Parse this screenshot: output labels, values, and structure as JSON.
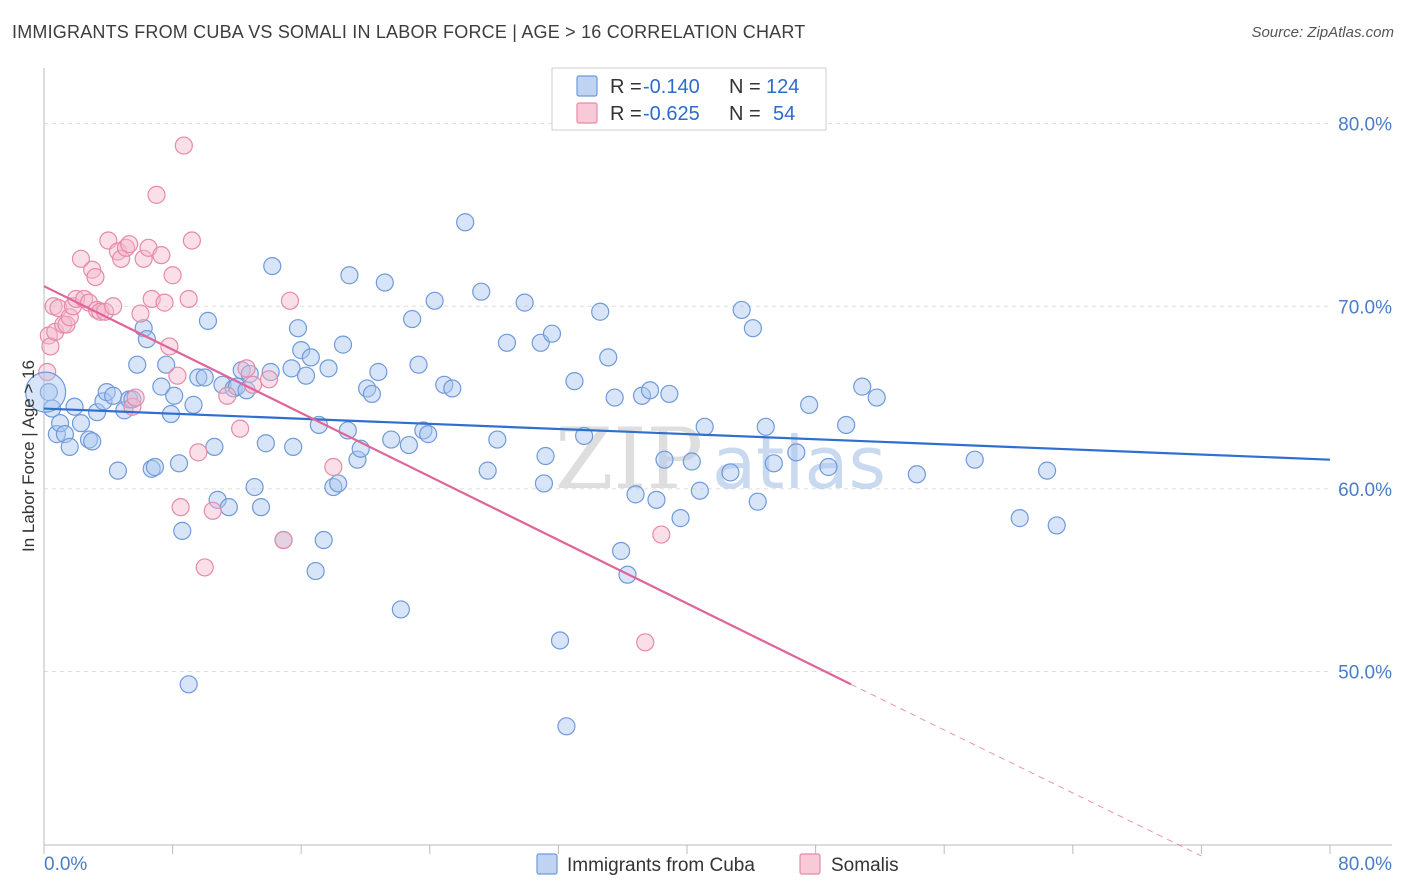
{
  "title": "IMMIGRANTS FROM CUBA VS SOMALI IN LABOR FORCE | AGE > 16 CORRELATION CHART",
  "source": "Source: ZipAtlas.com",
  "watermark": {
    "zip": "ZIP",
    "atlas": "atlas"
  },
  "colors": {
    "cuba_fill": "#a9c6ef",
    "cuba_stroke": "#6f9ad9",
    "cuba_line": "#2f6fcf",
    "somali_fill": "#f5b8cb",
    "somali_stroke": "#e68aa8",
    "somali_line": "#e0649a",
    "grid": "#dddddd",
    "axis_label": "#4a7cc7"
  },
  "legend": {
    "rows": [
      {
        "r_label": "R = ",
        "r_value": "-0.140",
        "n_label": "N = ",
        "n_value": "124"
      },
      {
        "r_label": "R = ",
        "r_value": "-0.625",
        "n_label": "N = ",
        "n_value": "54"
      }
    ]
  },
  "chart_data": {
    "type": "scatter",
    "ylabel": "In Labor Force | Age > 16",
    "xlabel": "",
    "xlim": [
      0,
      80
    ],
    "ylim": [
      40.5,
      82.5
    ],
    "x_tick_labels": [
      {
        "value": 0,
        "label": "0.0%"
      },
      {
        "value": 80,
        "label": "80.0%"
      }
    ],
    "y_tick_labels": [
      {
        "value": 50,
        "label": "50.0%"
      },
      {
        "value": 60,
        "label": "60.0%"
      },
      {
        "value": 70,
        "label": "70.0%"
      },
      {
        "value": 80,
        "label": "80.0%"
      }
    ],
    "x_minor_ticks": [
      0,
      8,
      16,
      24,
      32,
      40,
      48,
      56,
      64,
      72,
      80
    ],
    "grid": true,
    "legend_placement": "top-center",
    "series": [
      {
        "name": "Immigrants from Cuba",
        "r": -0.14,
        "n": 124,
        "trend": {
          "x": [
            0,
            80
          ],
          "y": [
            64.4,
            61.6
          ],
          "dashed_from": null
        },
        "points": [
          [
            0.3,
            65.3
          ],
          [
            0.5,
            64.4
          ],
          [
            0.8,
            63.0
          ],
          [
            1.0,
            63.6
          ],
          [
            1.3,
            63.0
          ],
          [
            1.6,
            62.3
          ],
          [
            1.9,
            64.5
          ],
          [
            2.3,
            63.6
          ],
          [
            2.8,
            62.7
          ],
          [
            3.0,
            62.6
          ],
          [
            3.3,
            64.2
          ],
          [
            3.7,
            64.8
          ],
          [
            3.9,
            65.3
          ],
          [
            4.3,
            65.1
          ],
          [
            4.6,
            61.0
          ],
          [
            5.0,
            64.3
          ],
          [
            5.3,
            64.9
          ],
          [
            5.5,
            64.9
          ],
          [
            5.8,
            66.8
          ],
          [
            6.2,
            68.8
          ],
          [
            6.4,
            68.2
          ],
          [
            6.7,
            61.1
          ],
          [
            6.9,
            61.2
          ],
          [
            7.3,
            65.6
          ],
          [
            7.6,
            66.8
          ],
          [
            7.9,
            64.1
          ],
          [
            8.1,
            65.1
          ],
          [
            8.4,
            61.4
          ],
          [
            8.6,
            57.7
          ],
          [
            9.0,
            49.3
          ],
          [
            9.3,
            64.6
          ],
          [
            9.6,
            66.1
          ],
          [
            10.0,
            66.1
          ],
          [
            10.2,
            69.2
          ],
          [
            10.6,
            62.3
          ],
          [
            10.8,
            59.4
          ],
          [
            11.1,
            65.7
          ],
          [
            11.5,
            59.0
          ],
          [
            11.8,
            65.5
          ],
          [
            12.0,
            65.6
          ],
          [
            12.3,
            66.5
          ],
          [
            12.6,
            65.4
          ],
          [
            12.8,
            66.3
          ],
          [
            13.1,
            60.1
          ],
          [
            13.5,
            59.0
          ],
          [
            13.8,
            62.5
          ],
          [
            14.1,
            66.4
          ],
          [
            14.2,
            72.2
          ],
          [
            14.9,
            57.2
          ],
          [
            15.4,
            66.6
          ],
          [
            15.5,
            62.3
          ],
          [
            15.8,
            68.8
          ],
          [
            16.0,
            67.6
          ],
          [
            16.3,
            66.2
          ],
          [
            16.6,
            67.2
          ],
          [
            16.9,
            55.5
          ],
          [
            17.1,
            63.5
          ],
          [
            17.4,
            57.2
          ],
          [
            17.7,
            66.6
          ],
          [
            18.0,
            60.1
          ],
          [
            18.3,
            60.3
          ],
          [
            18.6,
            67.9
          ],
          [
            18.9,
            63.2
          ],
          [
            19.0,
            71.7
          ],
          [
            19.5,
            61.6
          ],
          [
            19.7,
            62.2
          ],
          [
            20.1,
            65.5
          ],
          [
            20.4,
            65.2
          ],
          [
            20.8,
            66.4
          ],
          [
            21.2,
            71.3
          ],
          [
            21.6,
            62.7
          ],
          [
            22.2,
            53.4
          ],
          [
            22.7,
            62.4
          ],
          [
            22.9,
            69.3
          ],
          [
            23.3,
            66.8
          ],
          [
            23.6,
            63.2
          ],
          [
            23.9,
            63.0
          ],
          [
            24.3,
            70.3
          ],
          [
            24.9,
            65.7
          ],
          [
            25.4,
            65.5
          ],
          [
            26.2,
            74.6
          ],
          [
            27.2,
            70.8
          ],
          [
            27.6,
            61.0
          ],
          [
            28.2,
            62.7
          ],
          [
            28.8,
            68.0
          ],
          [
            29.9,
            70.2
          ],
          [
            30.9,
            68.0
          ],
          [
            31.1,
            60.3
          ],
          [
            31.2,
            61.8
          ],
          [
            31.6,
            68.5
          ],
          [
            32.1,
            51.7
          ],
          [
            32.5,
            47.0
          ],
          [
            33.0,
            65.9
          ],
          [
            33.6,
            62.9
          ],
          [
            34.6,
            69.7
          ],
          [
            35.1,
            67.2
          ],
          [
            35.5,
            65.0
          ],
          [
            35.9,
            56.6
          ],
          [
            36.3,
            55.3
          ],
          [
            36.8,
            59.7
          ],
          [
            37.2,
            65.1
          ],
          [
            37.7,
            65.4
          ],
          [
            38.1,
            59.4
          ],
          [
            38.6,
            61.6
          ],
          [
            38.9,
            65.2
          ],
          [
            39.6,
            58.4
          ],
          [
            40.3,
            61.5
          ],
          [
            40.8,
            59.9
          ],
          [
            41.1,
            63.4
          ],
          [
            42.7,
            60.9
          ],
          [
            43.4,
            69.8
          ],
          [
            44.1,
            68.8
          ],
          [
            44.4,
            59.3
          ],
          [
            44.9,
            63.4
          ],
          [
            45.4,
            61.4
          ],
          [
            46.8,
            62.0
          ],
          [
            47.6,
            64.6
          ],
          [
            48.8,
            61.2
          ],
          [
            49.9,
            63.5
          ],
          [
            50.9,
            65.6
          ],
          [
            51.8,
            65.0
          ],
          [
            54.3,
            60.8
          ],
          [
            57.9,
            61.6
          ],
          [
            60.7,
            58.4
          ],
          [
            62.4,
            61.0
          ],
          [
            63.0,
            58.0
          ]
        ]
      },
      {
        "name": "Somalis",
        "r": -0.625,
        "n": 54,
        "trend": {
          "x": [
            0,
            50.2,
            72
          ],
          "y": [
            71.1,
            49.3,
            39.9
          ],
          "dashed_from": 50.2
        },
        "points": [
          [
            0.2,
            66.4
          ],
          [
            0.3,
            68.4
          ],
          [
            0.4,
            67.8
          ],
          [
            0.6,
            70.0
          ],
          [
            0.7,
            68.6
          ],
          [
            0.9,
            69.9
          ],
          [
            1.2,
            69.0
          ],
          [
            1.4,
            69.0
          ],
          [
            1.6,
            69.4
          ],
          [
            1.8,
            70.0
          ],
          [
            2.0,
            70.4
          ],
          [
            2.3,
            72.6
          ],
          [
            2.5,
            70.4
          ],
          [
            2.8,
            70.2
          ],
          [
            3.0,
            72.0
          ],
          [
            3.2,
            71.6
          ],
          [
            3.3,
            69.8
          ],
          [
            3.5,
            69.7
          ],
          [
            3.8,
            69.7
          ],
          [
            4.0,
            73.6
          ],
          [
            4.3,
            70.0
          ],
          [
            4.6,
            73.0
          ],
          [
            4.8,
            72.6
          ],
          [
            5.1,
            73.2
          ],
          [
            5.3,
            73.4
          ],
          [
            5.5,
            64.5
          ],
          [
            5.7,
            65.0
          ],
          [
            6.0,
            69.6
          ],
          [
            6.2,
            72.6
          ],
          [
            6.5,
            73.2
          ],
          [
            6.7,
            70.4
          ],
          [
            7.0,
            76.1
          ],
          [
            7.3,
            72.8
          ],
          [
            7.5,
            70.2
          ],
          [
            7.8,
            67.8
          ],
          [
            8.0,
            71.7
          ],
          [
            8.3,
            66.2
          ],
          [
            8.5,
            59.0
          ],
          [
            8.7,
            78.8
          ],
          [
            9.0,
            70.4
          ],
          [
            9.2,
            73.6
          ],
          [
            9.6,
            62.0
          ],
          [
            10.0,
            55.7
          ],
          [
            10.5,
            58.8
          ],
          [
            11.4,
            65.1
          ],
          [
            12.2,
            63.3
          ],
          [
            12.6,
            66.6
          ],
          [
            13.0,
            65.7
          ],
          [
            14.0,
            66.0
          ],
          [
            14.9,
            57.2
          ],
          [
            15.3,
            70.3
          ],
          [
            18.0,
            61.2
          ],
          [
            38.4,
            57.5
          ],
          [
            37.4,
            51.6
          ]
        ]
      }
    ]
  },
  "bottom_legend": [
    {
      "label": "Immigrants from Cuba"
    },
    {
      "label": "Somalis"
    }
  ]
}
